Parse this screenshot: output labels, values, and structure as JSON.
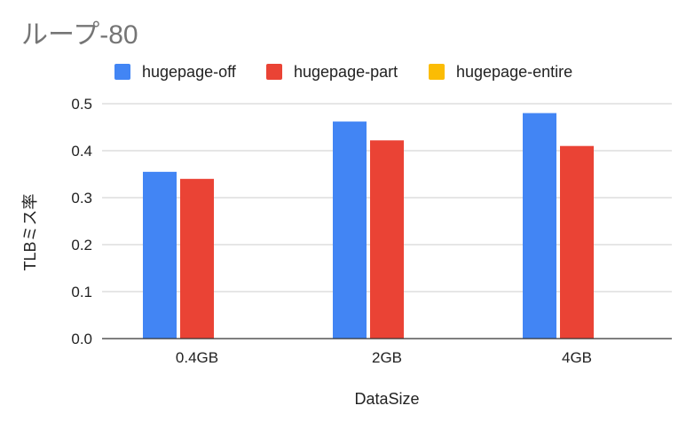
{
  "chart_data": {
    "type": "bar",
    "title": "ループ-80",
    "xlabel": "DataSize",
    "ylabel": "TLBミス率",
    "categories": [
      "0.4GB",
      "2GB",
      "4GB"
    ],
    "series": [
      {
        "name": "hugepage-off",
        "color": "#4285f4",
        "values": [
          0.355,
          0.462,
          0.48
        ]
      },
      {
        "name": "hugepage-part",
        "color": "#ea4335",
        "values": [
          0.34,
          0.422,
          0.41
        ]
      },
      {
        "name": "hugepage-entire",
        "color": "#fbbc04",
        "values": [
          0,
          0,
          0
        ]
      }
    ],
    "ylim": [
      0,
      0.5
    ],
    "yticks": [
      "0.0",
      "0.1",
      "0.2",
      "0.3",
      "0.4",
      "0.5"
    ],
    "grid": true,
    "legend_position": "top"
  }
}
